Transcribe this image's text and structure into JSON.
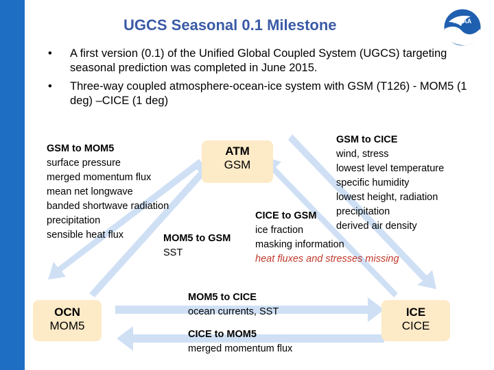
{
  "title": "UGCS Seasonal 0.1 Milestone",
  "logo_text": "NOAA",
  "bullets": [
    "A first version (0.1) of the Unified Global Coupled System (UGCS) targeting seasonal prediction was completed in June 2015.",
    "Three-way coupled atmosphere-ocean-ice system with GSM (T126) - MOM5 (1 deg) –CICE (1 deg)"
  ],
  "boxes": {
    "atm": {
      "line1": "ATM",
      "line2": "GSM"
    },
    "ocn": {
      "line1": "OCN",
      "line2": "MOM5"
    },
    "ice": {
      "line1": "ICE",
      "line2": "CICE"
    }
  },
  "gsm_to_mom5": {
    "heading": "GSM to MOM5",
    "items": [
      "surface pressure",
      "merged momentum flux",
      "mean net longwave",
      "banded shortwave radiation",
      "precipitation",
      "sensible heat flux"
    ]
  },
  "mom5_to_gsm": {
    "heading": "MOM5 to GSM",
    "items": [
      "SST"
    ]
  },
  "gsm_to_cice": {
    "heading": "GSM to CICE",
    "items": [
      "wind, stress",
      "lowest level temperature",
      "specific humidity",
      "lowest height, radiation",
      "precipitation",
      "derived air density"
    ]
  },
  "cice_to_gsm": {
    "heading": "CICE to GSM",
    "items": [
      "ice fraction",
      "masking information"
    ],
    "note": "heat fluxes and stresses missing"
  },
  "mom5_to_cice": {
    "heading": "MOM5 to CICE",
    "items": [
      "ocean currents, SST"
    ]
  },
  "cice_to_mom5": {
    "heading": "CICE to MOM5",
    "items": [
      "merged momentum flux"
    ]
  },
  "colors": {
    "sidebar": "#1e6fc4",
    "title": "#3a5aa6",
    "box_fill": "#fdeac7",
    "arrow": "#cfe0f5",
    "note": "#c0392b"
  }
}
